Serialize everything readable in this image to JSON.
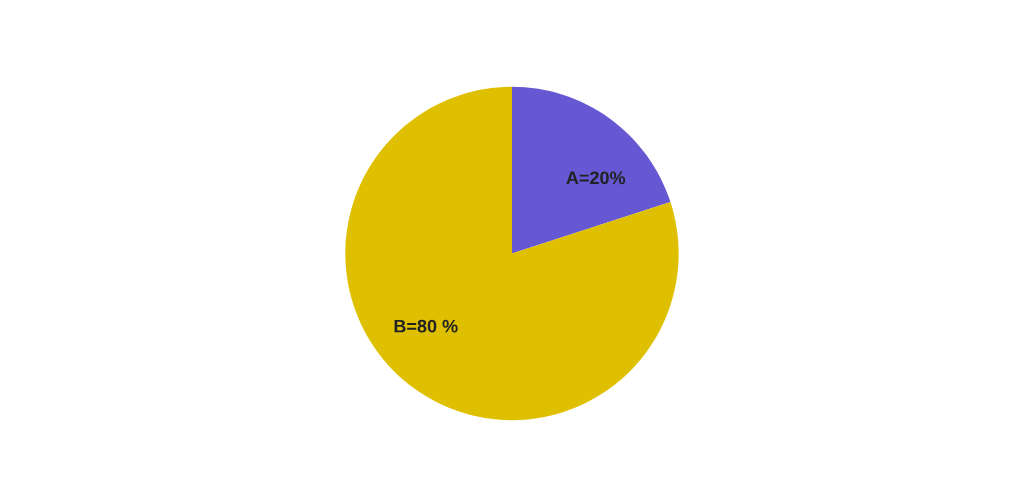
{
  "chart_data": {
    "type": "pie",
    "categories": [
      "A=20%",
      "B=80 %"
    ],
    "values": [
      20,
      80
    ],
    "colors": [
      "#6658d3",
      "#dfc000"
    ]
  }
}
